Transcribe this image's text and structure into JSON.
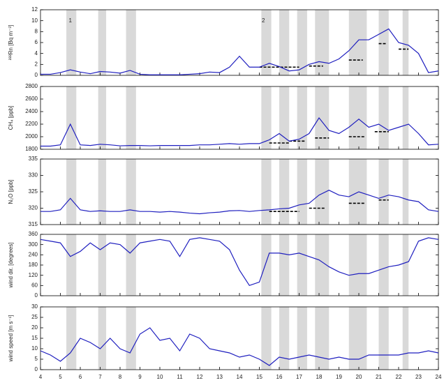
{
  "shaded_spans": [
    [
      5.3,
      5.8
    ],
    [
      6.9,
      7.3
    ],
    [
      8.3,
      8.8
    ],
    [
      15.1,
      15.6
    ],
    [
      16.0,
      16.5
    ],
    [
      16.9,
      17.4
    ],
    [
      17.8,
      18.5
    ],
    [
      19.5,
      20.4
    ],
    [
      21.0,
      21.5
    ],
    [
      22.2,
      22.5
    ]
  ],
  "shade_color": "#d9d9d9",
  "chart_data": [
    {
      "type": "line",
      "ylabel": "²²²Rn [Bq m⁻³]",
      "xlim": [
        4,
        24
      ],
      "xticks": [
        4,
        5,
        6,
        7,
        8,
        9,
        10,
        11,
        12,
        13,
        14,
        15,
        16,
        17,
        18,
        19,
        20,
        21,
        22,
        23,
        24
      ],
      "ylim": [
        0,
        12
      ],
      "yticks": [
        0,
        2,
        4,
        6,
        8,
        10,
        12
      ],
      "x": [
        4,
        4.5,
        5,
        5.5,
        6,
        6.5,
        7,
        7.5,
        8,
        8.5,
        9,
        9.5,
        10,
        10.5,
        11,
        11.5,
        12,
        12.5,
        13,
        13.5,
        14,
        14.5,
        15,
        15.5,
        16,
        16.5,
        17,
        17.5,
        18,
        18.5,
        19,
        19.5,
        20,
        20.5,
        21,
        21.5,
        22,
        22.5,
        23,
        23.5,
        24
      ],
      "series": [
        {
          "color": "#1f1fbf",
          "values": [
            0.2,
            0.2,
            0.5,
            1.0,
            0.6,
            0.3,
            0.7,
            0.6,
            0.4,
            0.9,
            0.2,
            0.1,
            0.1,
            0.1,
            0.1,
            0.2,
            0.3,
            0.6,
            0.5,
            1.5,
            3.5,
            1.5,
            1.5,
            2.2,
            1.6,
            0.8,
            1.0,
            2.0,
            2.5,
            2.2,
            3.0,
            4.5,
            6.5,
            6.5,
            7.5,
            8.5,
            6.0,
            5.5,
            4.0,
            0.5,
            0.8
          ]
        }
      ],
      "reference_segments": [
        {
          "x": [
            15,
            17
          ],
          "y": 1.5
        },
        {
          "x": [
            17.5,
            18.2
          ],
          "y": 1.7
        },
        {
          "x": [
            19.5,
            20.2
          ],
          "y": 2.8
        },
        {
          "x": [
            21,
            21.4
          ],
          "y": 5.8
        },
        {
          "x": [
            22,
            22.5
          ],
          "y": 4.8
        }
      ],
      "annotations": [
        {
          "text": "1",
          "x": 5.5,
          "y": 10
        },
        {
          "text": "2",
          "x": 15.2,
          "y": 10
        }
      ]
    },
    {
      "type": "line",
      "ylabel": "CH₄ [ppb]",
      "xlim": [
        4,
        24
      ],
      "xticks": [
        4,
        5,
        6,
        7,
        8,
        9,
        10,
        11,
        12,
        13,
        14,
        15,
        16,
        17,
        18,
        19,
        20,
        21,
        22,
        23,
        24
      ],
      "ylim": [
        1800,
        2800
      ],
      "yticks": [
        1800,
        2000,
        2200,
        2400,
        2600,
        2800
      ],
      "x": [
        4,
        4.5,
        5,
        5.5,
        6,
        6.5,
        7,
        7.5,
        8,
        8.5,
        9,
        9.5,
        10,
        10.5,
        11,
        11.5,
        12,
        12.5,
        13,
        13.5,
        14,
        14.5,
        15,
        15.5,
        16,
        16.5,
        17,
        17.5,
        18,
        18.5,
        19,
        19.5,
        20,
        20.5,
        21,
        21.5,
        22,
        22.5,
        23,
        23.5,
        24
      ],
      "series": [
        {
          "color": "#1f1fbf",
          "values": [
            1850,
            1850,
            1870,
            2200,
            1870,
            1860,
            1880,
            1870,
            1855,
            1860,
            1860,
            1855,
            1860,
            1860,
            1860,
            1860,
            1870,
            1870,
            1880,
            1890,
            1880,
            1890,
            1890,
            1950,
            2050,
            1930,
            1960,
            2050,
            2300,
            2100,
            2050,
            2150,
            2280,
            2150,
            2200,
            2100,
            2150,
            2200,
            2050,
            1870,
            1880
          ]
        }
      ],
      "reference_segments": [
        {
          "x": [
            15.5,
            16.5
          ],
          "y": 1900
        },
        {
          "x": [
            16.5,
            17.3
          ],
          "y": 1930
        },
        {
          "x": [
            17.8,
            18.5
          ],
          "y": 1980
        },
        {
          "x": [
            19.5,
            20.3
          ],
          "y": 2000
        },
        {
          "x": [
            20.8,
            21.5
          ],
          "y": 2080
        }
      ]
    },
    {
      "type": "line",
      "ylabel": "N₂O [ppb]",
      "xlim": [
        4,
        24
      ],
      "xticks": [
        4,
        5,
        6,
        7,
        8,
        9,
        10,
        11,
        12,
        13,
        14,
        15,
        16,
        17,
        18,
        19,
        20,
        21,
        22,
        23,
        24
      ],
      "ylim": [
        315,
        335
      ],
      "yticks": [
        315,
        320,
        325,
        330,
        335
      ],
      "x": [
        4,
        4.5,
        5,
        5.5,
        6,
        6.5,
        7,
        7.5,
        8,
        8.5,
        9,
        9.5,
        10,
        10.5,
        11,
        11.5,
        12,
        12.5,
        13,
        13.5,
        14,
        14.5,
        15,
        15.5,
        16,
        16.5,
        17,
        17.5,
        18,
        18.5,
        19,
        19.5,
        20,
        20.5,
        21,
        21.5,
        22,
        22.5,
        23,
        23.5,
        24
      ],
      "series": [
        {
          "color": "#1f1fbf",
          "values": [
            319,
            319,
            319.5,
            323,
            319.5,
            319,
            319.2,
            319,
            319,
            319.5,
            319,
            319,
            318.8,
            319,
            318.8,
            318.5,
            318.3,
            318.6,
            318.8,
            319.2,
            319.3,
            319,
            319.3,
            319.5,
            319.8,
            320,
            321,
            321.5,
            324,
            325.5,
            324,
            323.5,
            325,
            324,
            323,
            324,
            323.5,
            322.5,
            322,
            319.5,
            319
          ]
        }
      ],
      "reference_segments": [
        {
          "x": [
            15.5,
            17
          ],
          "y": 319
        },
        {
          "x": [
            17.5,
            18.3
          ],
          "y": 320
        },
        {
          "x": [
            19.5,
            20.3
          ],
          "y": 321.5
        },
        {
          "x": [
            21,
            21.5
          ],
          "y": 322.5
        }
      ]
    },
    {
      "type": "line",
      "ylabel": "wind dir. [degrees]",
      "xlim": [
        4,
        24
      ],
      "xticks": [
        4,
        5,
        6,
        7,
        8,
        9,
        10,
        11,
        12,
        13,
        14,
        15,
        16,
        17,
        18,
        19,
        20,
        21,
        22,
        23,
        24
      ],
      "ylim": [
        0,
        360
      ],
      "yticks": [
        0,
        60,
        120,
        180,
        240,
        300,
        360
      ],
      "x": [
        4,
        4.5,
        5,
        5.5,
        6,
        6.5,
        7,
        7.5,
        8,
        8.5,
        9,
        9.5,
        10,
        10.5,
        11,
        11.5,
        12,
        12.5,
        13,
        13.5,
        14,
        14.5,
        15,
        15.5,
        16,
        16.5,
        17,
        17.5,
        18,
        18.5,
        19,
        19.5,
        20,
        20.5,
        21,
        21.5,
        22,
        22.5,
        23,
        23.5,
        24
      ],
      "series": [
        {
          "color": "#1f1fbf",
          "values": [
            330,
            320,
            310,
            230,
            260,
            310,
            270,
            310,
            300,
            250,
            310,
            320,
            330,
            320,
            230,
            330,
            340,
            330,
            320,
            270,
            150,
            60,
            80,
            250,
            250,
            240,
            250,
            230,
            210,
            170,
            140,
            120,
            130,
            130,
            150,
            170,
            180,
            200,
            320,
            340,
            330
          ]
        }
      ]
    },
    {
      "type": "line",
      "ylabel": "wind speed [m s⁻¹]",
      "xlim": [
        4,
        24
      ],
      "xticks": [
        4,
        5,
        6,
        7,
        8,
        9,
        10,
        11,
        12,
        13,
        14,
        15,
        16,
        17,
        18,
        19,
        20,
        21,
        22,
        23,
        24
      ],
      "ylim": [
        0,
        30
      ],
      "yticks": [
        0,
        5,
        10,
        15,
        20,
        25,
        30
      ],
      "x": [
        4,
        4.5,
        5,
        5.5,
        6,
        6.5,
        7,
        7.5,
        8,
        8.5,
        9,
        9.5,
        10,
        10.5,
        11,
        11.5,
        12,
        12.5,
        13,
        13.5,
        14,
        14.5,
        15,
        15.5,
        16,
        16.5,
        17,
        17.5,
        18,
        18.5,
        19,
        19.5,
        20,
        20.5,
        21,
        21.5,
        22,
        22.5,
        23,
        23.5,
        24
      ],
      "series": [
        {
          "color": "#1f1fbf",
          "values": [
            9,
            7,
            4,
            8,
            15,
            13,
            10,
            15,
            10,
            8,
            17,
            20,
            14,
            15,
            9,
            17,
            15,
            10,
            9,
            8,
            6,
            7,
            5,
            2,
            6,
            5,
            6,
            7,
            6,
            5,
            6,
            5,
            5,
            7,
            7,
            7,
            7,
            8,
            8,
            9,
            8
          ]
        }
      ]
    }
  ]
}
